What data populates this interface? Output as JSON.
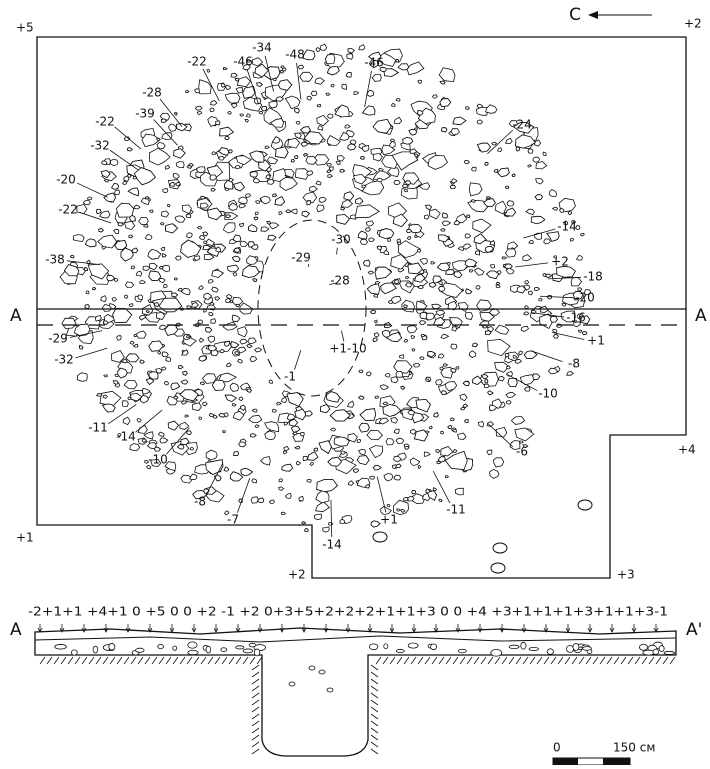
{
  "north": "С",
  "corners": [
    "+5",
    "+2",
    "+4",
    "+1",
    "+2",
    "+3"
  ],
  "section_line_labels": [
    "A",
    "A"
  ],
  "elevations": [
    "-34",
    "-46",
    "-48",
    "-46",
    "-22",
    "-28",
    "-39",
    "-22",
    "-32",
    "-24",
    "-20",
    "-22",
    "-14",
    "-30",
    "-29",
    "-28",
    "+2",
    "-18",
    "-20",
    "-38",
    "-16",
    "-29",
    "+1-10",
    "+1",
    "-32",
    "-8",
    "-1",
    "-10",
    "-11",
    "-14",
    "-10",
    "-6",
    "-8",
    "-7",
    "-11",
    "+1",
    "-14"
  ],
  "section": {
    "start": "A",
    "end": "A'",
    "heights": "-2+1+1 +4+1 0 +5 0  0 +2 -1 +2 0+3+5+2+2+2+1+1+3 0  0 +4 +3+1+1+1+3+1+1+3-1"
  },
  "scale": {
    "zero": "0",
    "length": "150 см"
  }
}
